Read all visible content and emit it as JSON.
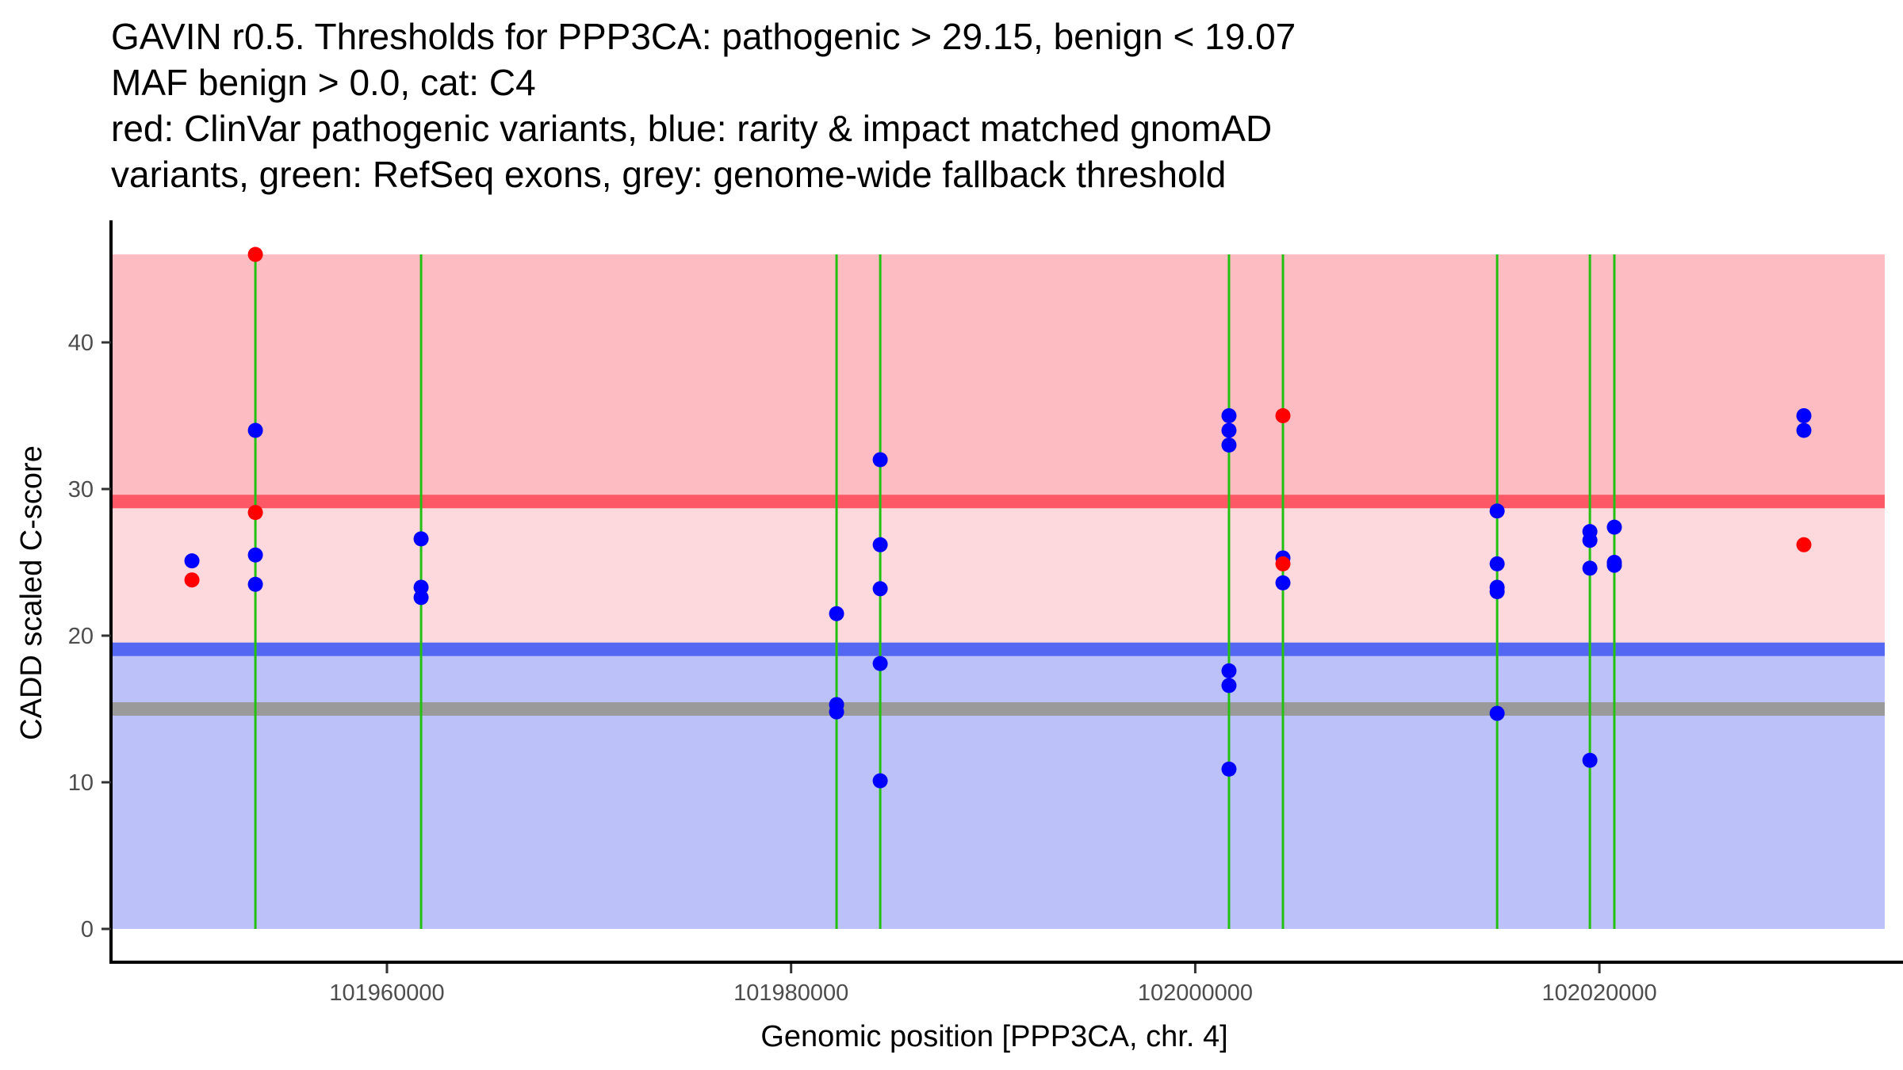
{
  "chart_data": {
    "type": "scatter",
    "title_lines": [
      "GAVIN r0.5. Thresholds for PPP3CA: pathogenic > 29.15, benign < 19.07",
      "MAF benign > 0.0, cat: C4",
      "red: ClinVar pathogenic variants, blue: rarity & impact matched gnomAD",
      "variants, green: RefSeq exons, grey: genome-wide fallback threshold"
    ],
    "xlabel": "Genomic position [PPP3CA, chr. 4]",
    "ylabel": "CADD scaled C-score",
    "xlim": [
      101946340,
      102034900
    ],
    "ylim": [
      -2.3,
      46.8
    ],
    "x_ticks": [
      101960000,
      101980000,
      102000000,
      102020000
    ],
    "x_tick_labels": [
      "101960000",
      "101980000",
      "102000000",
      "102020000"
    ],
    "y_ticks": [
      0,
      10,
      20,
      30,
      40
    ],
    "y_tick_labels": [
      "0",
      "10",
      "20",
      "30",
      "40"
    ],
    "grid": false,
    "legend": "none (described in title)",
    "regions": {
      "x_range": [
        101946340,
        102034120
      ],
      "pathogenic_zone": {
        "from": 29.15,
        "to": 46.0,
        "color": "#fcbcc1"
      },
      "vus_zone": {
        "from": 19.07,
        "to": 29.15,
        "color": "#fdd8dc"
      },
      "benign_zone": {
        "from": 0,
        "to": 19.07,
        "color": "#bcc1fa"
      }
    },
    "threshold_lines": [
      {
        "name": "pathogenic threshold",
        "value": 29.15,
        "color": "#fc5865"
      },
      {
        "name": "benign threshold",
        "value": 19.07,
        "color": "#5467f2"
      },
      {
        "name": "genome-wide fallback threshold",
        "value": 15.0,
        "color": "#9a9a9a"
      }
    ],
    "exon_lines": {
      "color": "#22c111",
      "positions": [
        101953490,
        101961690,
        101982250,
        101984410,
        102001670,
        102004340,
        102014940,
        102019530,
        102020740
      ]
    },
    "series": [
      {
        "name": "ClinVar pathogenic variants",
        "color": "#ff0000",
        "points": [
          {
            "x": 101950350,
            "y": 23.8
          },
          {
            "x": 101953490,
            "y": 46.0
          },
          {
            "x": 101953490,
            "y": 28.4
          },
          {
            "x": 102004340,
            "y": 35.0
          },
          {
            "x": 102004340,
            "y": 24.9
          },
          {
            "x": 102030120,
            "y": 26.2
          }
        ]
      },
      {
        "name": "rarity & impact matched gnomAD variants",
        "color": "#0000ff",
        "points": [
          {
            "x": 101950350,
            "y": 25.1
          },
          {
            "x": 101953490,
            "y": 34.0
          },
          {
            "x": 101953490,
            "y": 25.5
          },
          {
            "x": 101953490,
            "y": 23.5
          },
          {
            "x": 101961690,
            "y": 26.6
          },
          {
            "x": 101961690,
            "y": 23.3
          },
          {
            "x": 101961690,
            "y": 22.6
          },
          {
            "x": 101982250,
            "y": 21.5
          },
          {
            "x": 101982250,
            "y": 15.3
          },
          {
            "x": 101982250,
            "y": 14.8
          },
          {
            "x": 101984410,
            "y": 32.0
          },
          {
            "x": 101984410,
            "y": 26.2
          },
          {
            "x": 101984410,
            "y": 23.2
          },
          {
            "x": 101984410,
            "y": 18.1
          },
          {
            "x": 101984410,
            "y": 10.1
          },
          {
            "x": 102001670,
            "y": 35.0
          },
          {
            "x": 102001670,
            "y": 34.0
          },
          {
            "x": 102001670,
            "y": 33.0
          },
          {
            "x": 102001670,
            "y": 17.6
          },
          {
            "x": 102001670,
            "y": 16.6
          },
          {
            "x": 102001670,
            "y": 10.9
          },
          {
            "x": 102004340,
            "y": 25.3
          },
          {
            "x": 102004340,
            "y": 23.6
          },
          {
            "x": 102014940,
            "y": 28.5
          },
          {
            "x": 102014940,
            "y": 24.9
          },
          {
            "x": 102014940,
            "y": 23.3
          },
          {
            "x": 102014940,
            "y": 23.0
          },
          {
            "x": 102014940,
            "y": 14.7
          },
          {
            "x": 102019530,
            "y": 27.1
          },
          {
            "x": 102019530,
            "y": 26.5
          },
          {
            "x": 102019530,
            "y": 24.6
          },
          {
            "x": 102019530,
            "y": 11.5
          },
          {
            "x": 102020740,
            "y": 27.4
          },
          {
            "x": 102020740,
            "y": 25.0
          },
          {
            "x": 102020740,
            "y": 24.8
          },
          {
            "x": 102030120,
            "y": 35.0
          },
          {
            "x": 102030120,
            "y": 34.0
          }
        ]
      }
    ]
  }
}
